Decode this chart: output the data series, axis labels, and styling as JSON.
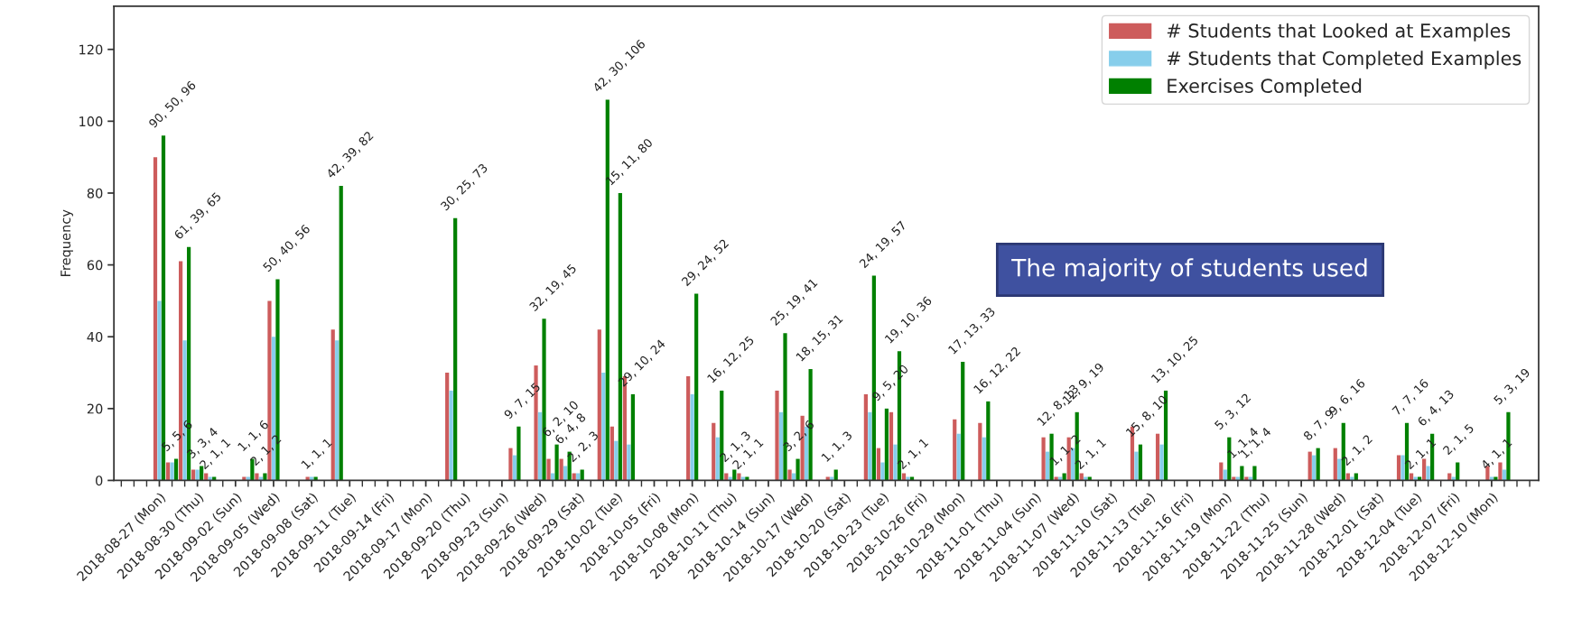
{
  "chart_data": {
    "type": "bar",
    "ylabel": "Frequency",
    "x": [
      "2018-08-27",
      "2018-08-28",
      "2018-08-29",
      "2018-08-30",
      "2018-08-31",
      "2018-09-03",
      "2018-09-04",
      "2018-09-05",
      "2018-09-08",
      "2018-09-10",
      "2018-09-19",
      "2018-09-24",
      "2018-09-26",
      "2018-09-27",
      "2018-09-28",
      "2018-09-29",
      "2018-10-01",
      "2018-10-02",
      "2018-10-03",
      "2018-10-08",
      "2018-10-10",
      "2018-10-11",
      "2018-10-12",
      "2018-10-15",
      "2018-10-16",
      "2018-10-17",
      "2018-10-19",
      "2018-10-22",
      "2018-10-23",
      "2018-10-24",
      "2018-10-25",
      "2018-10-29",
      "2018-10-31",
      "2018-11-05",
      "2018-11-06",
      "2018-11-07",
      "2018-11-08",
      "2018-11-12",
      "2018-11-14",
      "2018-11-19",
      "2018-11-20",
      "2018-11-21",
      "2018-11-26",
      "2018-11-28",
      "2018-11-29",
      "2018-12-03",
      "2018-12-04",
      "2018-12-05",
      "2018-12-07",
      "2018-12-10",
      "2018-12-11"
    ],
    "series": [
      {
        "name": "# Students that Looked at Examples",
        "color": "#cd5c5c",
        "values": [
          90,
          5,
          61,
          3,
          2,
          1,
          2,
          50,
          1,
          42,
          30,
          9,
          32,
          6,
          6,
          2,
          42,
          15,
          29,
          29,
          16,
          2,
          2,
          25,
          3,
          18,
          1,
          24,
          9,
          19,
          2,
          17,
          16,
          12,
          1,
          12,
          2,
          15,
          13,
          5,
          1,
          1,
          8,
          9,
          2,
          7,
          2,
          6,
          2,
          4,
          5
        ]
      },
      {
        "name": "# Students that Completed Examples",
        "color": "#87ceeb",
        "values": [
          50,
          5,
          39,
          3,
          1,
          1,
          1,
          40,
          1,
          39,
          25,
          7,
          19,
          2,
          4,
          2,
          30,
          11,
          10,
          24,
          12,
          1,
          1,
          19,
          2,
          15,
          1,
          19,
          5,
          10,
          1,
          13,
          12,
          8,
          1,
          9,
          1,
          8,
          10,
          3,
          1,
          1,
          7,
          6,
          1,
          7,
          1,
          4,
          1,
          1,
          3
        ]
      },
      {
        "name": "Exercises Completed",
        "color": "#008000",
        "values": [
          96,
          6,
          65,
          4,
          1,
          6,
          2,
          56,
          1,
          82,
          73,
          15,
          45,
          10,
          8,
          3,
          106,
          80,
          24,
          52,
          25,
          3,
          1,
          41,
          6,
          31,
          3,
          57,
          20,
          36,
          1,
          33,
          22,
          13,
          2,
          19,
          1,
          10,
          25,
          12,
          4,
          4,
          9,
          16,
          2,
          16,
          1,
          13,
          5,
          1,
          19
        ],
        "value_labels": [
          "90, 50, 96",
          "5, 5, 6",
          "61, 39, 65",
          "3, 3, 4",
          "2, 1, 1",
          "1, 1, 6",
          "2, 1, 2",
          "50, 40, 56",
          "1, 1, 1",
          "42, 39, 82",
          "30, 25, 73",
          "9, 7, 15",
          "32, 19, 45",
          "6, 2, 10",
          "6, 4, 8",
          "2, 2, 3",
          "42, 30, 106",
          "15, 11, 80",
          "29, 10, 24",
          "29, 24, 52",
          "16, 12, 25",
          "2, 1, 3",
          "2, 1, 1",
          "25, 19, 41",
          "3, 2, 6",
          "18, 15, 31",
          "1, 1, 3",
          "24, 19, 57",
          "9, 5, 20",
          "19, 10, 36",
          "2, 1, 1",
          "17, 13, 33",
          "16, 12, 22",
          "12, 8, 13",
          "1, 1, 2",
          "12, 9, 19",
          "2, 1, 1",
          "15, 8, 10",
          "13, 10, 25",
          "5, 3, 12",
          "1, 1, 4",
          "1, 1, 4",
          "8, 7, 9",
          "9, 6, 16",
          "2, 1, 2",
          "7, 7, 16",
          "2, 1, 1",
          "6, 4, 13",
          "2, 1, 5",
          "4, 1, 1",
          "5, 3, 19"
        ]
      }
    ],
    "xlim": [
      "2018-08-23T10:00",
      "2018-12-13T17:00"
    ],
    "xticks": [
      {
        "value": "2018-08-27",
        "label": "2018-08-27 (Mon)"
      },
      {
        "value": "2018-08-30",
        "label": "2018-08-30 (Thu)"
      },
      {
        "value": "2018-09-02",
        "label": "2018-09-02 (Sun)"
      },
      {
        "value": "2018-09-05",
        "label": "2018-09-05 (Wed)"
      },
      {
        "value": "2018-09-08",
        "label": "2018-09-08 (Sat)"
      },
      {
        "value": "2018-09-11",
        "label": "2018-09-11 (Tue)"
      },
      {
        "value": "2018-09-14",
        "label": "2018-09-14 (Fri)"
      },
      {
        "value": "2018-09-17",
        "label": "2018-09-17 (Mon)"
      },
      {
        "value": "2018-09-20",
        "label": "2018-09-20 (Thu)"
      },
      {
        "value": "2018-09-23",
        "label": "2018-09-23 (Sun)"
      },
      {
        "value": "2018-09-26",
        "label": "2018-09-26 (Wed)"
      },
      {
        "value": "2018-09-29",
        "label": "2018-09-29 (Sat)"
      },
      {
        "value": "2018-10-02",
        "label": "2018-10-02 (Tue)"
      },
      {
        "value": "2018-10-05",
        "label": "2018-10-05 (Fri)"
      },
      {
        "value": "2018-10-08",
        "label": "2018-10-08 (Mon)"
      },
      {
        "value": "2018-10-11",
        "label": "2018-10-11 (Thu)"
      },
      {
        "value": "2018-10-14",
        "label": "2018-10-14 (Sun)"
      },
      {
        "value": "2018-10-17",
        "label": "2018-10-17 (Wed)"
      },
      {
        "value": "2018-10-20",
        "label": "2018-10-20 (Sat)"
      },
      {
        "value": "2018-10-23",
        "label": "2018-10-23 (Tue)"
      },
      {
        "value": "2018-10-26",
        "label": "2018-10-26 (Fri)"
      },
      {
        "value": "2018-10-29",
        "label": "2018-10-29 (Mon)"
      },
      {
        "value": "2018-11-01",
        "label": "2018-11-01 (Thu)"
      },
      {
        "value": "2018-11-04",
        "label": "2018-11-04 (Sun)"
      },
      {
        "value": "2018-11-07",
        "label": "2018-11-07 (Wed)"
      },
      {
        "value": "2018-11-10",
        "label": "2018-11-10 (Sat)"
      },
      {
        "value": "2018-11-13",
        "label": "2018-11-13 (Tue)"
      },
      {
        "value": "2018-11-16",
        "label": "2018-11-16 (Fri)"
      },
      {
        "value": "2018-11-19",
        "label": "2018-11-19 (Mon)"
      },
      {
        "value": "2018-11-22",
        "label": "2018-11-22 (Thu)"
      },
      {
        "value": "2018-11-25",
        "label": "2018-11-25 (Sun)"
      },
      {
        "value": "2018-11-28",
        "label": "2018-11-28 (Wed)"
      },
      {
        "value": "2018-12-01",
        "label": "2018-12-01 (Sat)"
      },
      {
        "value": "2018-12-04",
        "label": "2018-12-04 (Tue)"
      },
      {
        "value": "2018-12-07",
        "label": "2018-12-07 (Fri)"
      },
      {
        "value": "2018-12-10",
        "label": "2018-12-10 (Mon)"
      }
    ],
    "ylim": [
      0,
      132
    ],
    "yticks": [
      0,
      20,
      40,
      60,
      80,
      100,
      120
    ],
    "legend": "top right",
    "annotations": [
      "The majority of students used"
    ]
  }
}
